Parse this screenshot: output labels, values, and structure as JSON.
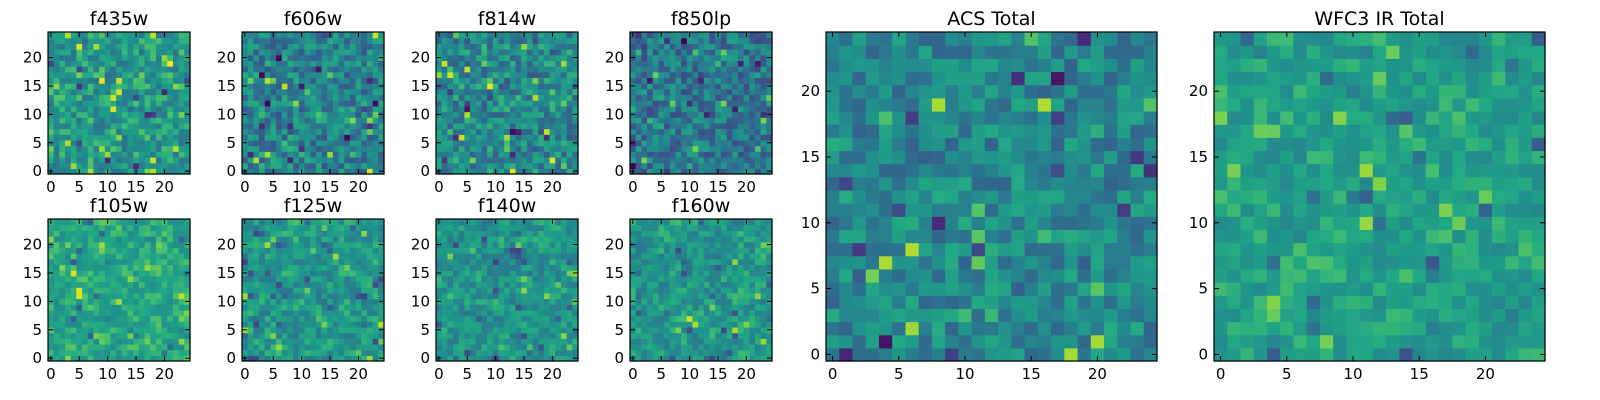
{
  "figure": {
    "panel_count": 10
  },
  "chart_data": [
    {
      "type": "heatmap",
      "id": "p-f435w",
      "title": "f435w",
      "colormap": "viridis",
      "grid_size": 25,
      "xlim": [
        0,
        24
      ],
      "ylim": [
        0,
        24
      ],
      "xticks": [
        0,
        5,
        10,
        15,
        20
      ],
      "yticks": [
        0,
        5,
        10,
        15,
        20
      ],
      "seed": 11,
      "mean": 0.66,
      "spread": 0.18,
      "smooth": 0
    },
    {
      "type": "heatmap",
      "id": "p-f606w",
      "title": "f606w",
      "colormap": "viridis",
      "grid_size": 25,
      "xlim": [
        0,
        24
      ],
      "ylim": [
        0,
        24
      ],
      "xticks": [
        0,
        5,
        10,
        15,
        20
      ],
      "yticks": [
        0,
        5,
        10,
        15,
        20
      ],
      "seed": 23,
      "mean": 0.56,
      "spread": 0.22,
      "smooth": 0
    },
    {
      "type": "heatmap",
      "id": "p-f814w",
      "title": "f814w",
      "colormap": "viridis",
      "grid_size": 25,
      "xlim": [
        0,
        24
      ],
      "ylim": [
        0,
        24
      ],
      "xticks": [
        0,
        5,
        10,
        15,
        20
      ],
      "yticks": [
        0,
        5,
        10,
        15,
        20
      ],
      "seed": 37,
      "mean": 0.58,
      "spread": 0.22,
      "smooth": 0
    },
    {
      "type": "heatmap",
      "id": "p-f850lp",
      "title": "f850lp",
      "colormap": "viridis",
      "grid_size": 25,
      "xlim": [
        0,
        24
      ],
      "ylim": [
        0,
        24
      ],
      "xticks": [
        0,
        5,
        10,
        15,
        20
      ],
      "yticks": [
        0,
        5,
        10,
        15,
        20
      ],
      "seed": 41,
      "mean": 0.5,
      "spread": 0.22,
      "smooth": 0
    },
    {
      "type": "heatmap",
      "id": "p-f105w",
      "title": "f105w",
      "colormap": "viridis",
      "grid_size": 25,
      "xlim": [
        0,
        24
      ],
      "ylim": [
        0,
        24
      ],
      "xticks": [
        0,
        5,
        10,
        15,
        20
      ],
      "yticks": [
        0,
        5,
        10,
        15,
        20
      ],
      "seed": 53,
      "mean": 0.72,
      "spread": 0.16,
      "smooth": 1
    },
    {
      "type": "heatmap",
      "id": "p-f125w",
      "title": "f125w",
      "colormap": "viridis",
      "grid_size": 25,
      "xlim": [
        0,
        24
      ],
      "ylim": [
        0,
        24
      ],
      "xticks": [
        0,
        5,
        10,
        15,
        20
      ],
      "yticks": [
        0,
        5,
        10,
        15,
        20
      ],
      "seed": 67,
      "mean": 0.66,
      "spread": 0.2,
      "smooth": 1
    },
    {
      "type": "heatmap",
      "id": "p-f140w",
      "title": "f140w",
      "colormap": "viridis",
      "grid_size": 25,
      "xlim": [
        0,
        24
      ],
      "ylim": [
        0,
        24
      ],
      "xticks": [
        0,
        5,
        10,
        15,
        20
      ],
      "yticks": [
        0,
        5,
        10,
        15,
        20
      ],
      "seed": 71,
      "mean": 0.64,
      "spread": 0.2,
      "smooth": 1
    },
    {
      "type": "heatmap",
      "id": "p-f160w",
      "title": "f160w",
      "colormap": "viridis",
      "grid_size": 25,
      "xlim": [
        0,
        24
      ],
      "ylim": [
        0,
        24
      ],
      "xticks": [
        0,
        5,
        10,
        15,
        20
      ],
      "yticks": [
        0,
        5,
        10,
        15,
        20
      ],
      "seed": 83,
      "mean": 0.66,
      "spread": 0.2,
      "smooth": 1
    },
    {
      "type": "heatmap",
      "id": "p-acs-total",
      "title": "ACS Total",
      "colormap": "viridis",
      "grid_size": 25,
      "xlim": [
        0,
        24
      ],
      "ylim": [
        0,
        24
      ],
      "xticks": [
        0,
        5,
        10,
        15,
        20
      ],
      "yticks": [
        0,
        5,
        10,
        15,
        20
      ],
      "seed": 97,
      "mean": 0.58,
      "spread": 0.18,
      "smooth": 0
    },
    {
      "type": "heatmap",
      "id": "p-wfc3-ir-total",
      "title": "WFC3 IR Total",
      "colormap": "viridis",
      "grid_size": 25,
      "xlim": [
        0,
        24
      ],
      "ylim": [
        0,
        24
      ],
      "xticks": [
        0,
        5,
        10,
        15,
        20
      ],
      "yticks": [
        0,
        5,
        10,
        15,
        20
      ],
      "seed": 101,
      "mean": 0.7,
      "spread": 0.16,
      "smooth": 1
    }
  ]
}
